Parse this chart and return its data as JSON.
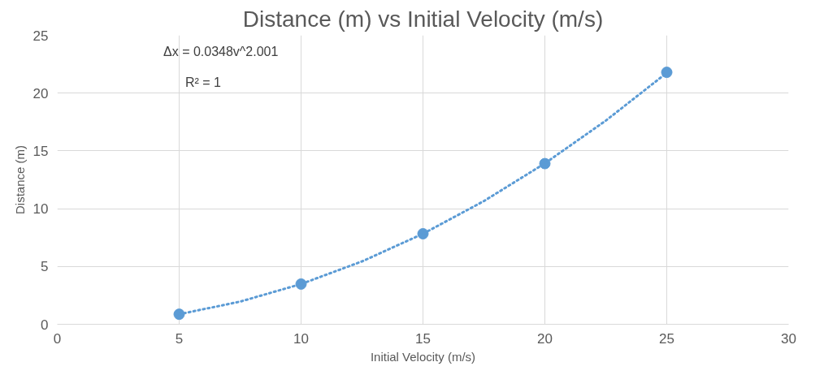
{
  "chart_data": {
    "type": "scatter",
    "title": "Distance (m) vs Initial Velocity (m/s)",
    "xlabel": "Initial Velocity (m/s)",
    "ylabel": "Distance (m)",
    "x": [
      5,
      10,
      15,
      20,
      25
    ],
    "series": [
      {
        "color": "#5b9bd5",
        "marker": "circle",
        "values": [
          0.87,
          3.48,
          7.83,
          13.9,
          21.8
        ]
      },
      {
        "type": "line",
        "color": "#5b9bd5",
        "line_style": "dotted",
        "x": [
          5,
          7.5,
          10,
          12.5,
          15,
          17.5,
          20,
          22.5,
          25
        ],
        "values": [
          0.87,
          1.96,
          3.48,
          5.44,
          7.83,
          10.66,
          13.92,
          17.62,
          21.75
        ]
      }
    ],
    "xlim": [
      0,
      30
    ],
    "xticks": [
      0,
      5,
      10,
      15,
      20,
      25,
      30
    ],
    "ylim": [
      0,
      25
    ],
    "yticks": [
      0,
      5,
      10,
      15,
      20,
      25
    ],
    "grid": true,
    "annotations": [
      "Δx = 0.0348v^2.001",
      "R² = 1"
    ]
  }
}
